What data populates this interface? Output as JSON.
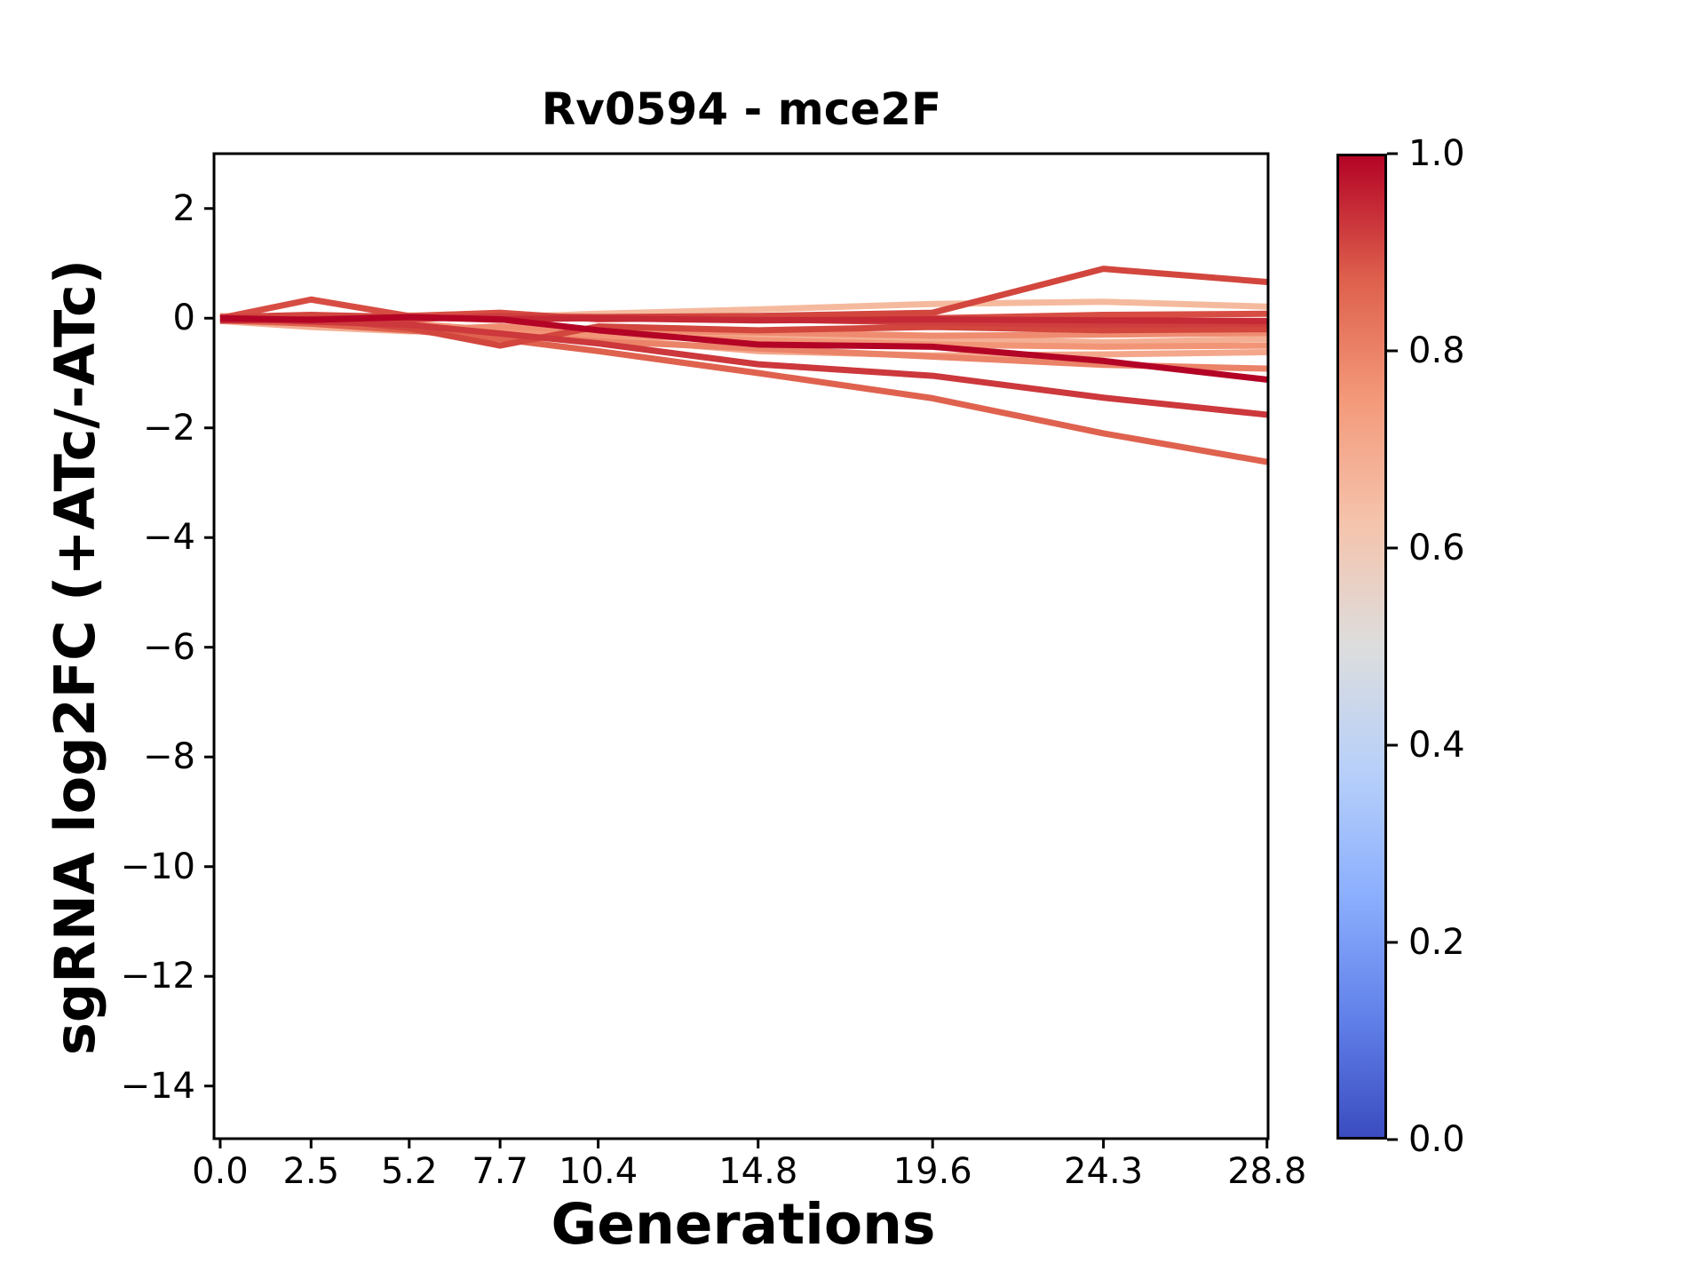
{
  "chart_data": {
    "type": "line",
    "title": "Rv0594 - mce2F",
    "xlabel": "Generations",
    "ylabel": "sgRNA log2FC (+ATc/-ATc)",
    "grid": false,
    "xlim": [
      -0.17,
      28.83
    ],
    "ylim": [
      -14.96,
      3.0
    ],
    "x_ticks": [
      0.0,
      2.5,
      5.2,
      7.7,
      10.4,
      14.8,
      19.6,
      24.3,
      28.8
    ],
    "x_tick_labels": [
      "0.0",
      "2.5",
      "5.2",
      "7.7",
      "10.4",
      "14.8",
      "19.6",
      "24.3",
      "28.8"
    ],
    "y_ticks": [
      2,
      0,
      -2,
      -4,
      -6,
      -8,
      -10,
      -12,
      -14
    ],
    "y_tick_labels": [
      "2",
      "0",
      "−2",
      "−4",
      "−6",
      "−8",
      "−10",
      "−12",
      "−14"
    ],
    "x": [
      0.0,
      2.5,
      5.2,
      7.7,
      10.4,
      14.8,
      19.6,
      24.3,
      28.8
    ],
    "series": [
      {
        "colormap_value": 0.64,
        "color": "#f5ba9e",
        "values": [
          0.04,
          0.02,
          0.05,
          0.02,
          0.08,
          0.16,
          0.26,
          0.3,
          0.21
        ]
      },
      {
        "colormap_value": 0.68,
        "color": "#f4b094",
        "values": [
          -0.05,
          -0.16,
          -0.24,
          -0.2,
          -0.26,
          -0.32,
          -0.38,
          -0.44,
          -0.38
        ]
      },
      {
        "colormap_value": 0.71,
        "color": "#f4a78b",
        "values": [
          0.02,
          0.0,
          -0.14,
          -0.26,
          -0.36,
          -0.6,
          -0.68,
          -0.66,
          -0.62
        ]
      },
      {
        "colormap_value": 0.76,
        "color": "#f29577",
        "values": [
          0.0,
          -0.05,
          -0.1,
          -0.22,
          -0.3,
          -0.4,
          -0.48,
          -0.52,
          -0.5
        ]
      },
      {
        "colormap_value": 0.78,
        "color": "#ef8c70",
        "values": [
          0.0,
          -0.1,
          -0.22,
          -0.15,
          -0.22,
          -0.26,
          -0.32,
          -0.3,
          -0.27
        ]
      },
      {
        "colormap_value": 0.8,
        "color": "#eb8368",
        "values": [
          0.0,
          -0.08,
          -0.18,
          -0.3,
          -0.42,
          -0.55,
          -0.7,
          -0.85,
          -0.92
        ]
      },
      {
        "colormap_value": 0.87,
        "color": "#df624f",
        "values": [
          -0.04,
          -0.1,
          -0.22,
          -0.38,
          -0.6,
          -1.0,
          -1.46,
          -2.1,
          -2.62
        ]
      },
      {
        "colormap_value": 0.89,
        "color": "#d74d43",
        "values": [
          0.0,
          0.34,
          0.04,
          0.1,
          -0.02,
          0.02,
          0.0,
          0.06,
          0.08
        ]
      },
      {
        "colormap_value": 0.9,
        "color": "#d2463e",
        "values": [
          0.02,
          0.0,
          -0.18,
          -0.5,
          -0.15,
          -0.22,
          -0.16,
          -0.22,
          -0.2
        ]
      },
      {
        "colormap_value": 0.9,
        "color": "#d2463e",
        "values": [
          0.02,
          0.06,
          0.02,
          -0.03,
          0.02,
          0.04,
          0.1,
          0.9,
          0.66
        ]
      },
      {
        "colormap_value": 0.92,
        "color": "#cf3e3e",
        "values": [
          0.02,
          -0.04,
          -0.02,
          0.04,
          0.02,
          -0.02,
          -0.08,
          -0.12,
          -0.1
        ]
      },
      {
        "colormap_value": 0.93,
        "color": "#cc383c",
        "values": [
          0.0,
          -0.06,
          -0.12,
          -0.28,
          -0.46,
          -0.84,
          -1.05,
          -1.45,
          -1.76
        ]
      },
      {
        "colormap_value": 0.95,
        "color": "#c52935",
        "values": [
          -0.04,
          -0.02,
          0.02,
          -0.02,
          0.0,
          -0.04,
          -0.02,
          -0.04,
          -0.05
        ]
      },
      {
        "colormap_value": 1.0,
        "color": "#b40426",
        "values": [
          0.0,
          -0.03,
          0.02,
          -0.02,
          -0.22,
          -0.48,
          -0.52,
          -0.78,
          -1.12
        ]
      }
    ],
    "colorbar": {
      "orientation": "vertical",
      "tick_labels": [
        "1.0",
        "0.8",
        "0.6",
        "0.4",
        "0.2",
        "0.0"
      ],
      "tick_values": [
        1.0,
        0.8,
        0.6,
        0.4,
        0.2,
        0.0
      ],
      "range": [
        0.0,
        1.0
      ],
      "colormap": "coolwarm",
      "gradient_stops": [
        {
          "value": 1.0,
          "color": "#b40426"
        },
        {
          "value": 0.875,
          "color": "#de604d"
        },
        {
          "value": 0.75,
          "color": "#f49a7b"
        },
        {
          "value": 0.625,
          "color": "#f5c4ad"
        },
        {
          "value": 0.5,
          "color": "#dddddd"
        },
        {
          "value": 0.375,
          "color": "#b8d0f9"
        },
        {
          "value": 0.25,
          "color": "#8db0fe"
        },
        {
          "value": 0.125,
          "color": "#6282ea"
        },
        {
          "value": 0.0,
          "color": "#3b4cc0"
        }
      ]
    }
  }
}
